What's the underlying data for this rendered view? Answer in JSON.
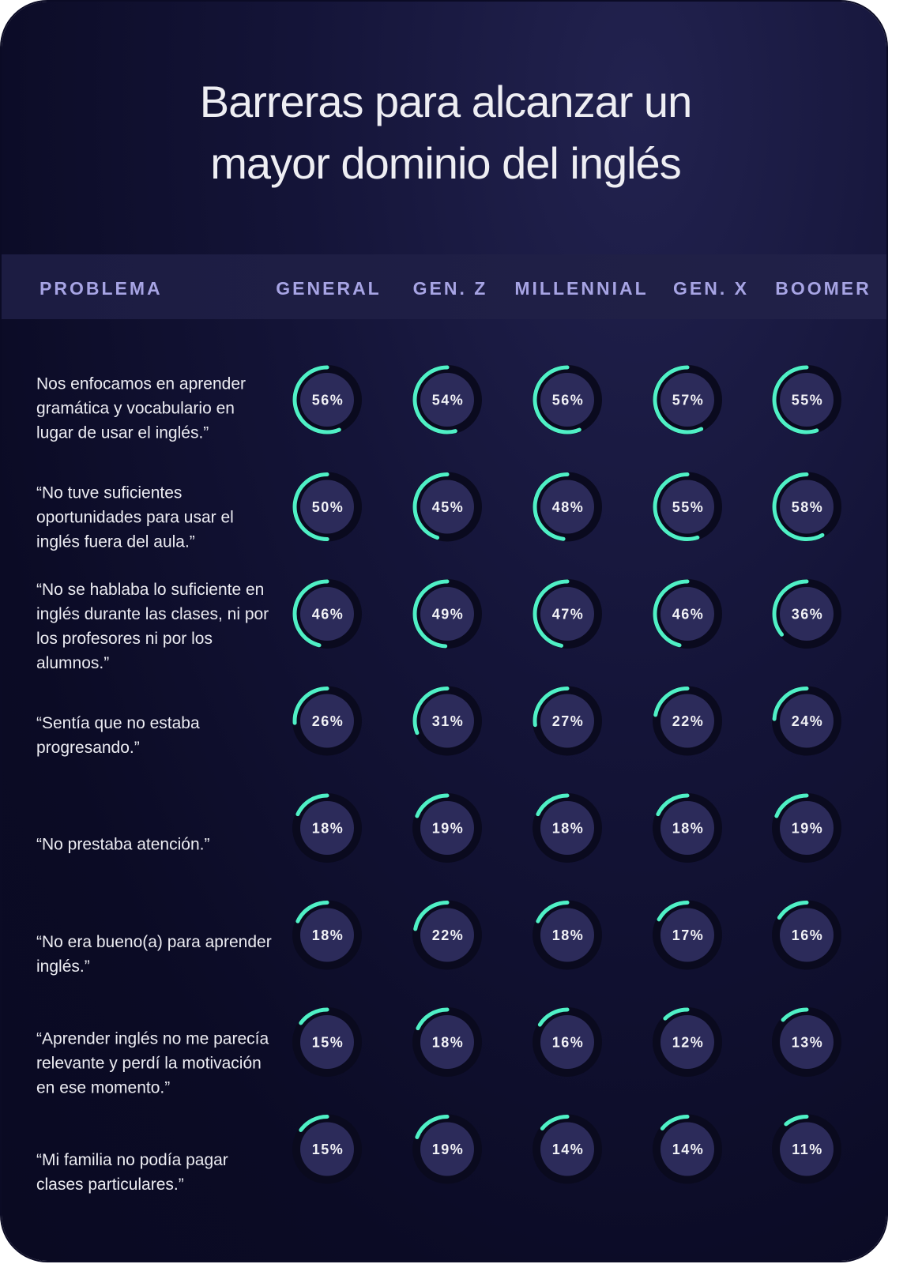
{
  "chart_data": {
    "type": "table",
    "title_lines": [
      "Barreras para alcanzar un",
      "mayor dominio del inglés"
    ],
    "problem_header": "PROBLEMA",
    "columns": [
      "GENERAL",
      "GEN. Z",
      "MILLENNIAL",
      "GEN. X",
      "BOOMER"
    ],
    "value_suffix": "%",
    "rows": [
      {
        "problem": "Nos enfocamos en aprender gramática y vocabulario en lugar de usar el inglés.”",
        "values": [
          56,
          54,
          56,
          57,
          55
        ]
      },
      {
        "problem": "“No tuve suficientes oportunidades para usar el inglés fuera del aula.”",
        "values": [
          50,
          45,
          48,
          55,
          58
        ]
      },
      {
        "problem": "“No se hablaba lo suficiente en inglés durante las clases, ni por los profesores ni por los alumnos.”",
        "values": [
          46,
          49,
          47,
          46,
          36
        ]
      },
      {
        "problem": "“Sentía que no estaba progresando.”",
        "values": [
          26,
          31,
          27,
          22,
          24
        ]
      },
      {
        "problem": "“No prestaba atención.”",
        "values": [
          18,
          19,
          18,
          18,
          19
        ]
      },
      {
        "problem": "“No era bueno(a) para aprender inglés.”",
        "values": [
          18,
          22,
          18,
          17,
          16
        ]
      },
      {
        "problem": "“Aprender inglés no me parecía relevante y perdí la motivación en ese momento.”",
        "values": [
          15,
          18,
          16,
          12,
          13
        ]
      },
      {
        "problem": "“Mi familia no podía pagar clases particulares.”",
        "values": [
          15,
          19,
          14,
          14,
          11
        ]
      }
    ]
  },
  "colors": {
    "arc": "#4ff0c6",
    "inner_circle": "#2c2b5a",
    "track": "#0a0a1e",
    "header_text": "#a7a4e4"
  }
}
